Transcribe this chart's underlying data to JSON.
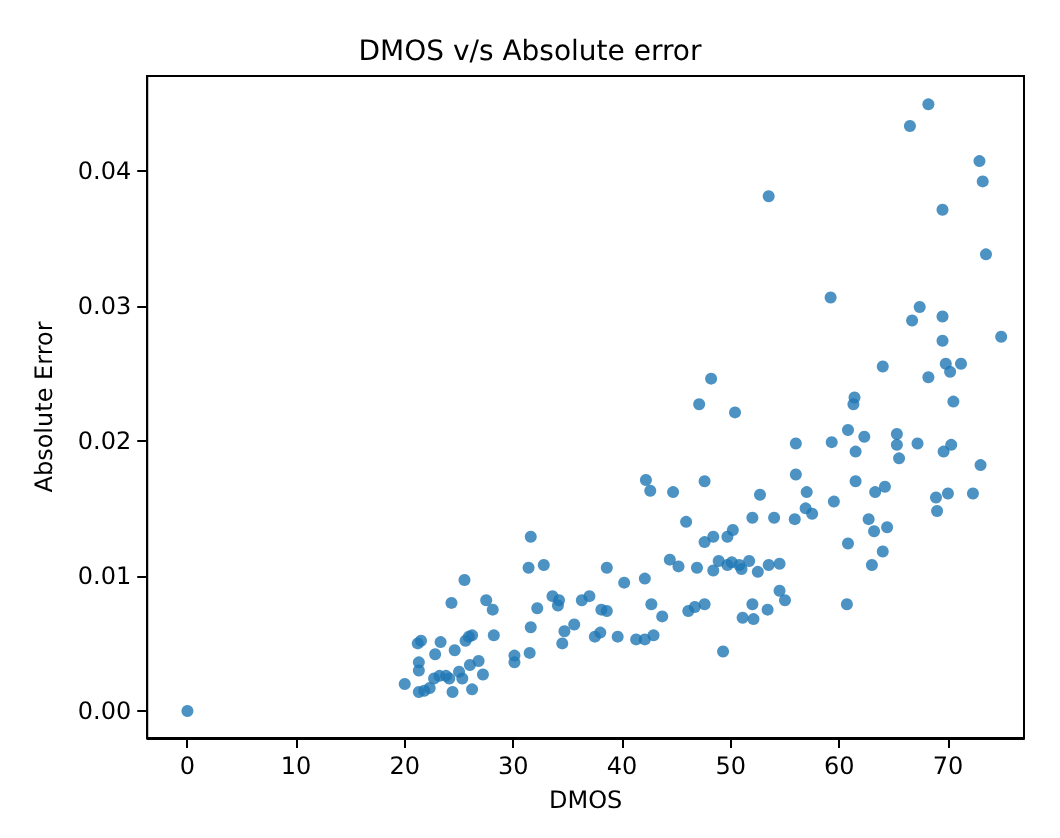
{
  "chart_data": {
    "type": "scatter",
    "title": "DMOS v/s Absolute error",
    "xlabel": "DMOS",
    "ylabel": "Absolute Error",
    "xlim": [
      -3.7,
      77
    ],
    "ylim": [
      -0.002,
      0.047
    ],
    "xticks": [
      0,
      10,
      20,
      30,
      40,
      50,
      60,
      70
    ],
    "yticks": [
      {
        "value": 0,
        "label": "0.00"
      },
      {
        "value": 0.01,
        "label": "0.01"
      },
      {
        "value": 0.02,
        "label": "0.02"
      },
      {
        "value": 0.03,
        "label": "0.03"
      },
      {
        "value": 0.04,
        "label": "0.04"
      }
    ],
    "marker": "circle",
    "series": [
      {
        "color": "#1f77b4",
        "x": [
          0,
          20.0,
          21.2,
          21.5,
          21.3,
          21.3,
          21.3,
          21.8,
          22.3,
          22.7,
          22.8,
          23.3,
          23.2,
          23.8,
          24.3,
          24.4,
          24.1,
          24.6,
          25.0,
          25.3,
          25.5,
          25.6,
          25.9,
          26.2,
          26.0,
          26.2,
          26.8,
          27.2,
          27.5,
          28.1,
          28.2,
          30.1,
          30.1,
          31.5,
          31.6,
          31.4,
          31.6,
          32.8,
          32.2,
          33.6,
          34.2,
          34.1,
          34.5,
          34.7,
          35.6,
          36.3,
          37.0,
          38.1,
          38.6,
          37.5,
          38.0,
          38.6,
          39.6,
          40.2,
          41.3,
          42.1,
          42.9,
          42.1,
          42.7,
          43.7,
          42.2,
          42.6,
          44.7,
          44.4,
          45.2,
          45.9,
          46.1,
          46.7,
          47.6,
          46.9,
          47.6,
          47.6,
          48.4,
          48.4,
          48.9,
          49.3,
          49.7,
          49.7,
          50.1,
          50.2,
          50.8,
          51.0,
          51.1,
          51.7,
          52.0,
          52.0,
          52.1,
          52.5,
          52.7,
          53.4,
          53.5,
          54.0,
          54.5,
          54.5,
          55.0,
          55.9,
          56.0,
          56.0,
          57.0,
          56.9,
          57.5,
          59.3,
          59.5,
          60.7,
          60.8,
          60.8,
          61.3,
          61.5,
          61.5,
          62.3,
          62.7,
          63.2,
          63.3,
          63.0,
          64.0,
          64.2,
          64.4,
          65.3,
          65.3,
          65.5,
          67.2,
          68.9,
          69.0,
          69.6,
          70.3,
          70.0,
          70.5,
          72.3,
          73.0,
          50.4,
          47.1,
          68.2,
          66.5,
          72.9,
          73.2,
          69.5,
          53.5,
          73.5,
          59.2,
          67.4,
          66.7,
          69.5,
          69.5,
          74.9,
          64.0,
          68.2,
          69.8,
          70.2,
          71.2,
          48.2,
          61.4
        ],
        "values": [
          0,
          0.002,
          0.005,
          0.0052,
          0.0036,
          0.003,
          0.0014,
          0.0015,
          0.0017,
          0.0024,
          0.0042,
          0.0051,
          0.0026,
          0.0026,
          0.008,
          0.0014,
          0.0024,
          0.0045,
          0.0029,
          0.0024,
          0.0097,
          0.0052,
          0.0055,
          0.0056,
          0.0034,
          0.0016,
          0.0037,
          0.0027,
          0.0082,
          0.0075,
          0.0056,
          0.0041,
          0.0036,
          0.0043,
          0.0129,
          0.0106,
          0.0062,
          0.0108,
          0.0076,
          0.0085,
          0.0082,
          0.0078,
          0.005,
          0.0059,
          0.0064,
          0.0082,
          0.0085,
          0.0075,
          0.0074,
          0.0055,
          0.0058,
          0.0106,
          0.0055,
          0.0095,
          0.0053,
          0.0053,
          0.0056,
          0.0098,
          0.0079,
          0.007,
          0.0171,
          0.0163,
          0.0162,
          0.0112,
          0.0107,
          0.014,
          0.0074,
          0.0077,
          0.0079,
          0.0106,
          0.0125,
          0.017,
          0.0129,
          0.0104,
          0.0111,
          0.0044,
          0.0108,
          0.0129,
          0.011,
          0.0134,
          0.0108,
          0.0105,
          0.0069,
          0.0111,
          0.0143,
          0.0079,
          0.0068,
          0.0103,
          0.016,
          0.0075,
          0.0108,
          0.0143,
          0.0109,
          0.0089,
          0.0082,
          0.0142,
          0.0175,
          0.0198,
          0.0162,
          0.015,
          0.0146,
          0.0199,
          0.0155,
          0.0079,
          0.0124,
          0.0208,
          0.0227,
          0.0192,
          0.017,
          0.0203,
          0.0142,
          0.0133,
          0.0162,
          0.0108,
          0.0118,
          0.0166,
          0.0136,
          0.0205,
          0.0197,
          0.0187,
          0.0198,
          0.0158,
          0.0148,
          0.0192,
          0.0197,
          0.0161,
          0.0229,
          0.0161,
          0.0182,
          0.0221,
          0.0227,
          0.0449,
          0.0433,
          0.0407,
          0.0392,
          0.0371,
          0.0381,
          0.0338,
          0.0306,
          0.0299,
          0.0289,
          0.0292,
          0.0274,
          0.0277,
          0.0255,
          0.0247,
          0.0257,
          0.0251,
          0.0257,
          0.0246,
          0.0232
        ]
      }
    ]
  }
}
